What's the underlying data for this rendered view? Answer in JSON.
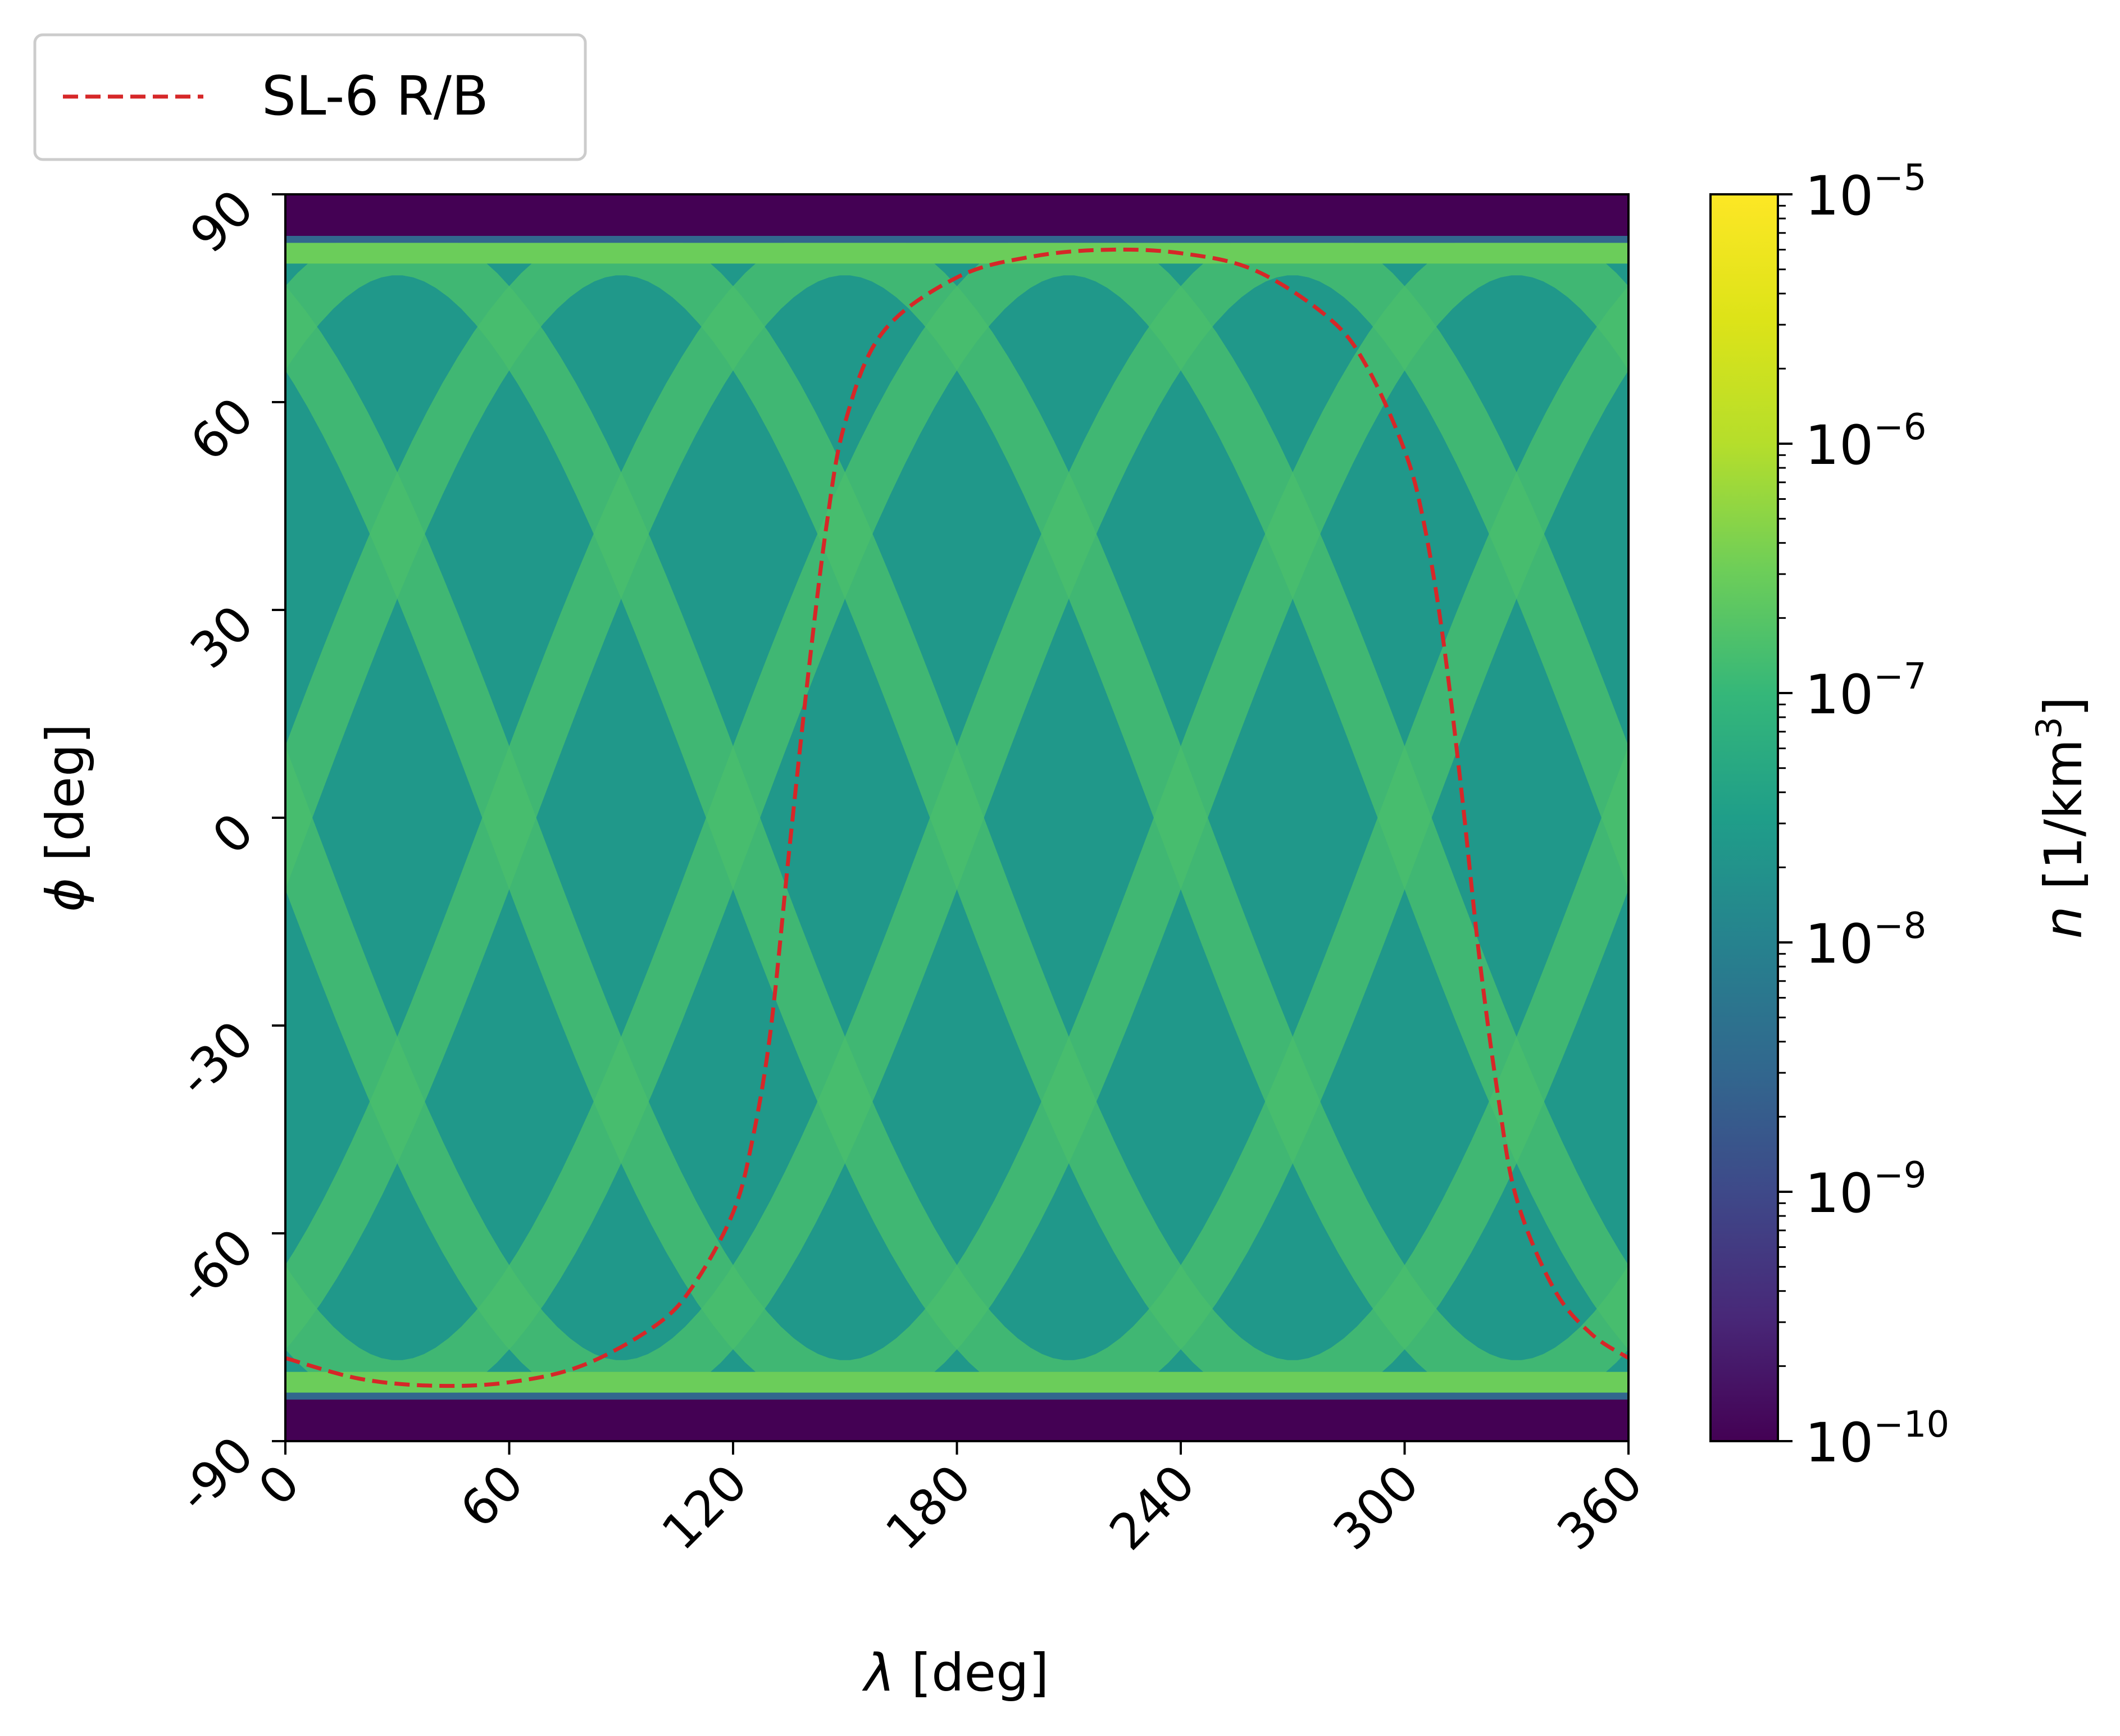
{
  "chart_data": {
    "type": "heatmap",
    "xlabel_symbol": "λ",
    "xlabel_unit": "[deg]",
    "ylabel_symbol": "ϕ",
    "ylabel_unit": "[deg]",
    "xlim": [
      0,
      360
    ],
    "ylim": [
      -90,
      90
    ],
    "xticks": [
      {
        "value": 0,
        "label": "0"
      },
      {
        "value": 60,
        "label": "60"
      },
      {
        "value": 120,
        "label": "120"
      },
      {
        "value": 180,
        "label": "180"
      },
      {
        "value": 240,
        "label": "240"
      },
      {
        "value": 300,
        "label": "300"
      },
      {
        "value": 360,
        "label": "360"
      }
    ],
    "yticks": [
      {
        "value": -90,
        "label": "-90"
      },
      {
        "value": -60,
        "label": "-60"
      },
      {
        "value": -30,
        "label": "-30"
      },
      {
        "value": 0,
        "label": "0"
      },
      {
        "value": 30,
        "label": "30"
      },
      {
        "value": 60,
        "label": "60"
      },
      {
        "value": 90,
        "label": "90"
      }
    ],
    "grid": false,
    "tick_rotation_deg": 45,
    "colorbar": {
      "scale": "log",
      "colormap": "viridis",
      "label_symbol": "n",
      "label_unit": "[1/km",
      "label_unit_exponent": "3",
      "label_unit_close": "]",
      "range": [
        1e-10,
        1e-05
      ],
      "ticks": [
        {
          "exponent": -10,
          "base": "10",
          "sup": "−10"
        },
        {
          "exponent": -9,
          "base": "10",
          "sup": "−9"
        },
        {
          "exponent": -8,
          "base": "10",
          "sup": "−8"
        },
        {
          "exponent": -7,
          "base": "10",
          "sup": "−7"
        },
        {
          "exponent": -6,
          "base": "10",
          "sup": "−6"
        },
        {
          "exponent": -5,
          "base": "10",
          "sup": "−5"
        }
      ]
    },
    "background_level": 2.5e-08,
    "band_level": 1.5e-07,
    "polar_ridge_level": 3e-07,
    "empty_polar_level": 1e-10,
    "latitude_coverage_limit": 84,
    "track_inclination": 82,
    "track_phase_lambdas": [
      0,
      60,
      120,
      180,
      240,
      300
    ],
    "series": [
      {
        "name": "SL-6 R/B",
        "style": "dashed",
        "color": "#d62728",
        "x": [
          0,
          20,
          40,
          60,
          80,
          100,
          110,
          120,
          125,
          130,
          135,
          140,
          145,
          150,
          160,
          180,
          200,
          220,
          240,
          260,
          280,
          290,
          300,
          305,
          310,
          315,
          320,
          325,
          330,
          340,
          350,
          360
        ],
        "y": [
          -78,
          -81,
          -82,
          -81.5,
          -79,
          -73,
          -67,
          -57,
          -47,
          -31,
          -5,
          20,
          42,
          57,
          70,
          78,
          81,
          82,
          81.5,
          79,
          72,
          65,
          53,
          43,
          27,
          5,
          -20,
          -40,
          -55,
          -68,
          -74.5,
          -78
        ]
      }
    ],
    "legend": {
      "placement": "upper-left-outside",
      "entries": [
        "SL-6 R/B"
      ]
    }
  }
}
